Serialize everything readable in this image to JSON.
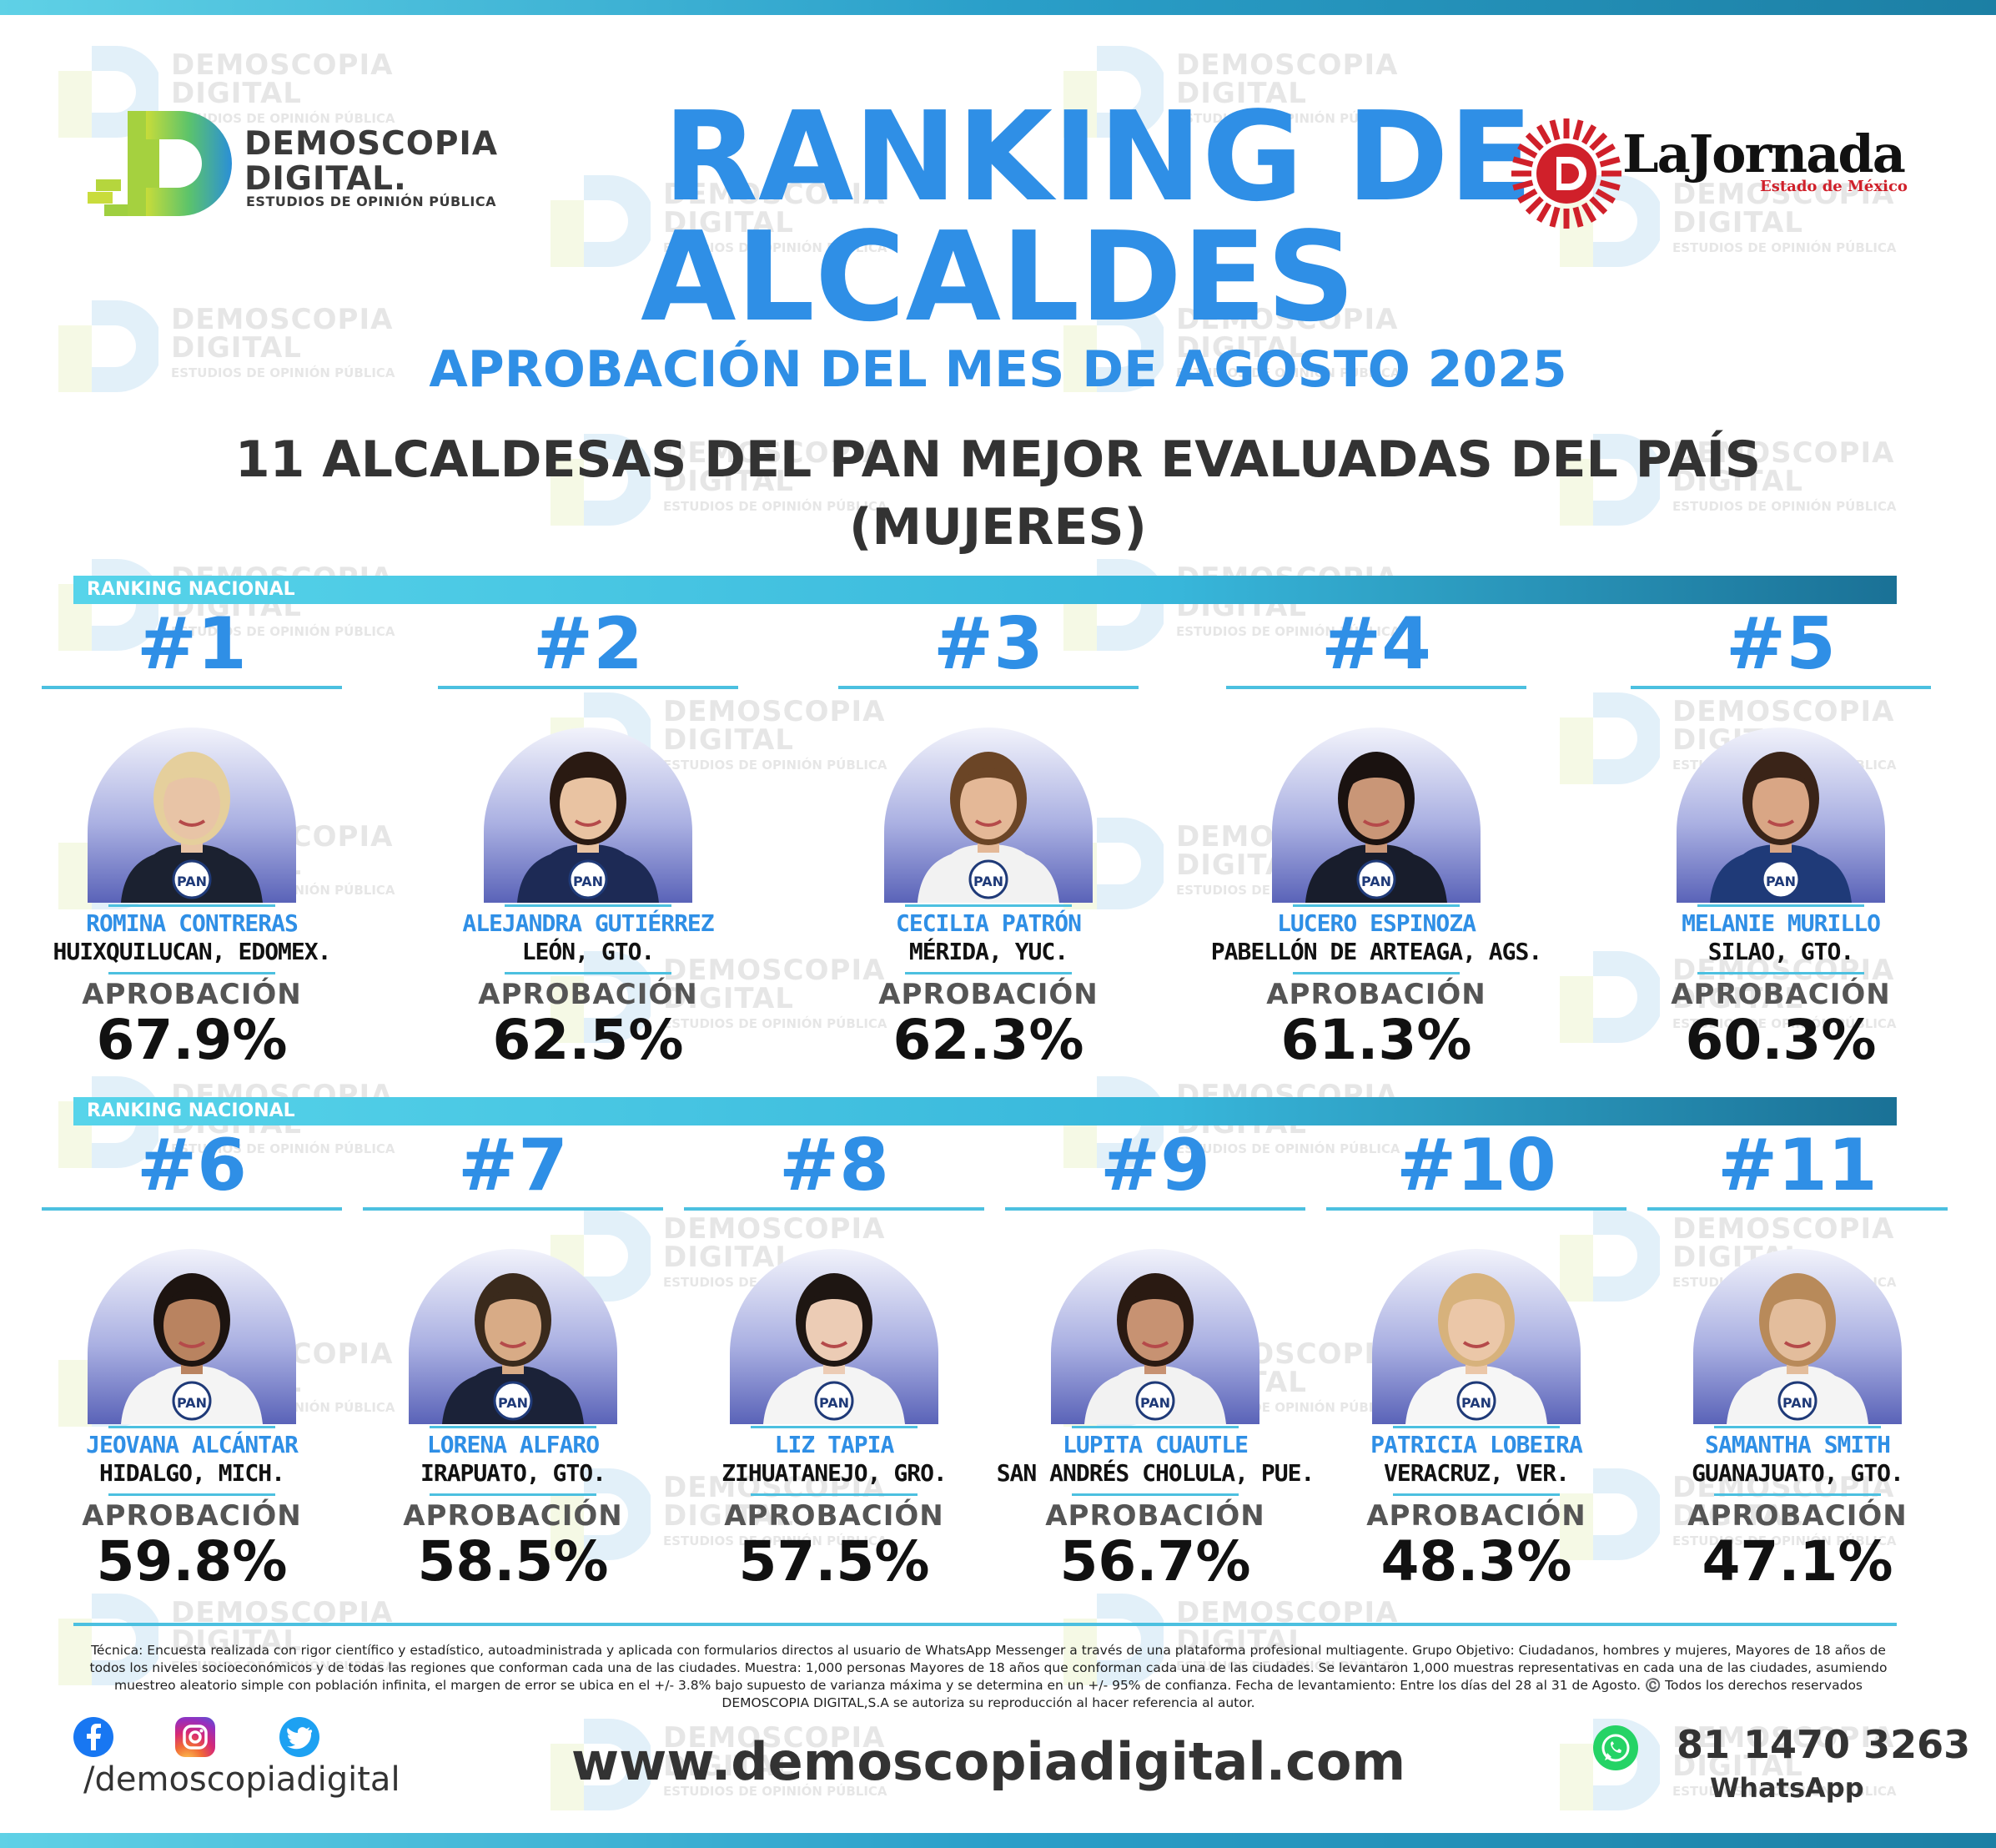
{
  "header": {
    "logo_line1": "DEMOSCOPIA",
    "logo_line2": "DIGITAL.",
    "logo_sub": "ESTUDIOS DE OPINIÓN PÚBLICA",
    "title_line1": "RANKING DE",
    "title_line2": "ALCALDES",
    "subtitle": "APROBACIÓN DEL MES DE AGOSTO 2025",
    "heading_line1": "11 ALCALDESAS DEL PAN MEJOR EVALUADAS DEL PAÍS",
    "heading_line2": "(MUJERES)",
    "partner_name": "LaJornada",
    "partner_sub": "Estado de México"
  },
  "watermark": {
    "line1": "DEMOSCOPIA",
    "line2": "DIGITAL",
    "line3": "ESTUDIOS DE OPINIÓN PÚBLICA"
  },
  "ranking_bar_label": "RANKING NACIONAL",
  "approval_label": "APROBACIÓN",
  "badge_text": "PAN",
  "colors": {
    "accent_blue": "#2f8fe6",
    "bar_cyan": "#4cc0e0",
    "text_dark": "#111111"
  },
  "mayors": [
    {
      "rank": "#1",
      "name": "ROMINA CONTRERAS",
      "place": "HUIXQUILUCAN, EDOMEX.",
      "approval": "67.9%",
      "approval_value": 67.9
    },
    {
      "rank": "#2",
      "name": "ALEJANDRA GUTIÉRREZ",
      "place": "LEÓN, GTO.",
      "approval": "62.5%",
      "approval_value": 62.5
    },
    {
      "rank": "#3",
      "name": "CECILIA PATRÓN",
      "place": "MÉRIDA, YUC.",
      "approval": "62.3%",
      "approval_value": 62.3
    },
    {
      "rank": "#4",
      "name": "LUCERO ESPINOZA",
      "place": "PABELLÓN DE ARTEAGA, AGS.",
      "approval": "61.3%",
      "approval_value": 61.3
    },
    {
      "rank": "#5",
      "name": "MELANIE MURILLO",
      "place": "SILAO, GTO.",
      "approval": "60.3%",
      "approval_value": 60.3
    },
    {
      "rank": "#6",
      "name": "JEOVANA ALCÁNTAR",
      "place": "HIDALGO, MICH.",
      "approval": "59.8%",
      "approval_value": 59.8
    },
    {
      "rank": "#7",
      "name": "LORENA ALFARO",
      "place": "IRAPUATO, GTO.",
      "approval": "58.5%",
      "approval_value": 58.5
    },
    {
      "rank": "#8",
      "name": "LIZ TAPIA",
      "place": "ZIHUATANEJO, GRO.",
      "approval": "57.5%",
      "approval_value": 57.5
    },
    {
      "rank": "#9",
      "name": "LUPITA CUAUTLE",
      "place": "SAN ANDRÉS CHOLULA, PUE.",
      "approval": "56.7%",
      "approval_value": 56.7
    },
    {
      "rank": "#10",
      "name": "PATRICIA LOBEIRA",
      "place": "VERACRUZ, VER.",
      "approval": "48.3%",
      "approval_value": 48.3
    },
    {
      "rank": "#11",
      "name": "SAMANTHA SMITH",
      "place": "GUANAJUATO, GTO.",
      "approval": "47.1%",
      "approval_value": 47.1
    }
  ],
  "footer": {
    "disclaimer": "Técnica: Encuesta realizada con rigor científico y estadístico, autoadministrada y aplicada con formularios directos al usuario de WhatsApp Messenger a través de una plataforma profesional multiagente. Grupo Objetivo: Ciudadanos, hombres y mujeres, Mayores de 18 años de todos los niveles socioeconómicos y de todas las regiones que conforman cada una de las ciudades. Muestra: 1,000 personas Mayores de 18 años que conforman cada una de las ciudades. Se levantaron 1,000 muestras representativas en cada una de las ciudades, asumiendo muestreo aleatorio simple con población infinita, el margen de error se ubica en el +/- 3.8% bajo supuesto de varianza máxima y se determina en un +/- 95% de confianza. Fecha de levantamiento: Entre los días del 28 al 31 de Agosto. ©️ Todos los derechos reservados DEMOSCOPIA DIGITAL,S.A se autoriza su reproducción al hacer referencia al autor.",
    "social_handle": "/demoscopiadigital",
    "website": "www.demoscopiadigital.com",
    "phone": "81 1470 3263",
    "whatsapp_label": "WhatsApp",
    "social_icons": [
      "facebook-icon",
      "instagram-icon",
      "twitter-icon"
    ]
  }
}
